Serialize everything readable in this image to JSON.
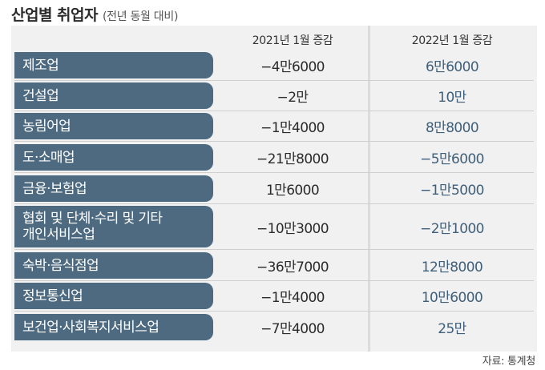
{
  "title": "산업별 취업자",
  "subtitle": "(전년 동월 대비)",
  "columns": [
    "2021년 1월 증감",
    "2022년 1월 증감"
  ],
  "rows": [
    {
      "label": "제조업",
      "y2021": "−4만6000",
      "y2022": "6만6000"
    },
    {
      "label": "건설업",
      "y2021": "−2만",
      "y2022": "10만"
    },
    {
      "label": "농림어업",
      "y2021": "−1만4000",
      "y2022": "8만8000"
    },
    {
      "label": "도·소매업",
      "y2021": "−21만8000",
      "y2022": "−5만6000"
    },
    {
      "label": "금융·보험업",
      "y2021": "1만6000",
      "y2022": "−1만5000"
    },
    {
      "label": "협회 및 단체·수리 및 기타\n개인서비스업",
      "y2021": "−10만3000",
      "y2022": "−2만1000"
    },
    {
      "label": "숙박·음식점업",
      "y2021": "−36만7000",
      "y2022": "12만8000"
    },
    {
      "label": "정보통신업",
      "y2021": "−1만4000",
      "y2022": "10만6000"
    },
    {
      "label": "보건업·사회복지서비스업",
      "y2021": "−7만4000",
      "y2022": "25만"
    }
  ],
  "source": "자료: 통계청"
}
